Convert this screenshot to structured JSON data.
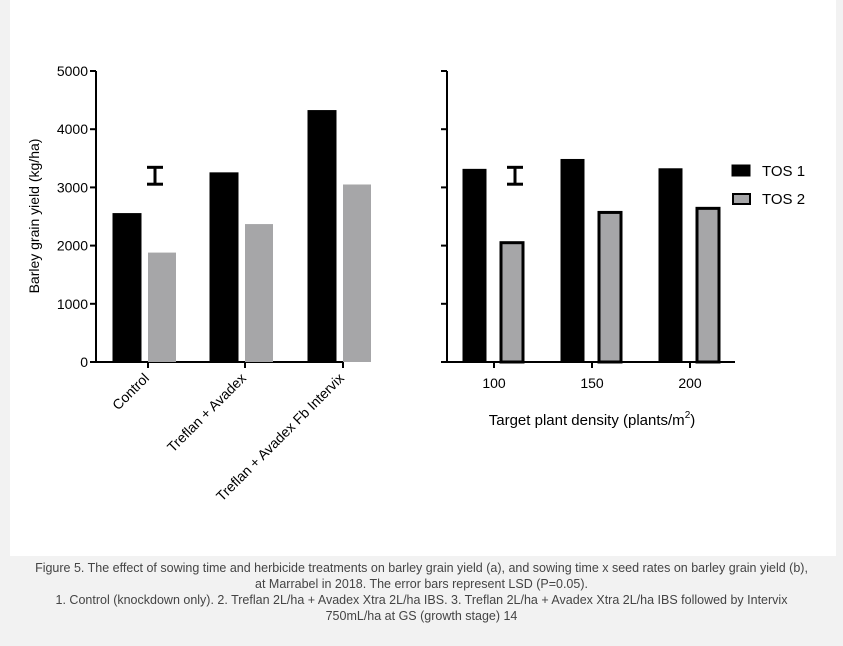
{
  "colors": {
    "tos1": "#000000",
    "tos2": "#a6a6a8",
    "background": "#f2f2f2",
    "panel": "#ffffff",
    "caption": "#444444"
  },
  "chart_data": [
    {
      "type": "bar",
      "ylabel": "Barley grain yield (kg/ha)",
      "ylim": [
        0,
        5000
      ],
      "yticks": [
        0,
        1000,
        2000,
        3000,
        4000,
        5000
      ],
      "categories": [
        "Control",
        "Treflan + Avadex",
        "Treflan + Avadex Fb Intervix"
      ],
      "series": [
        {
          "values": [
            2550,
            3250,
            4320
          ]
        },
        {
          "values": [
            1880,
            2370,
            3050
          ]
        }
      ],
      "lsd_error_bar": 290,
      "lsd_center": 3200
    },
    {
      "type": "bar",
      "xlabel_prefix": "Target plant density (plants/m",
      "xlabel_sup": "2",
      "xlabel_suffix": ")",
      "ylim": [
        0,
        5000
      ],
      "categories": [
        "100",
        "150",
        "200"
      ],
      "series": [
        {
          "name": "TOS 1",
          "values": [
            3310,
            3480,
            3320
          ]
        },
        {
          "name": "TOS 2",
          "values": [
            2050,
            2570,
            2640
          ]
        }
      ],
      "lsd_error_bar": 290,
      "lsd_center": 3200,
      "legend_position": "right"
    }
  ],
  "caption": {
    "line1": "Figure 5. The effect of sowing time and herbicide treatments on barley grain yield (a), and sowing time x seed rates on barley grain yield (b),",
    "line2": "at Marrabel in 2018. The error bars represent LSD (P=0.05).",
    "line3": "1. Control (knockdown only). 2. Treflan 2L/ha + Avadex Xtra 2L/ha IBS. 3. Treflan 2L/ha + Avadex Xtra 2L/ha IBS followed by Intervix",
    "line4": "750mL/ha at GS (growth stage) 14"
  }
}
